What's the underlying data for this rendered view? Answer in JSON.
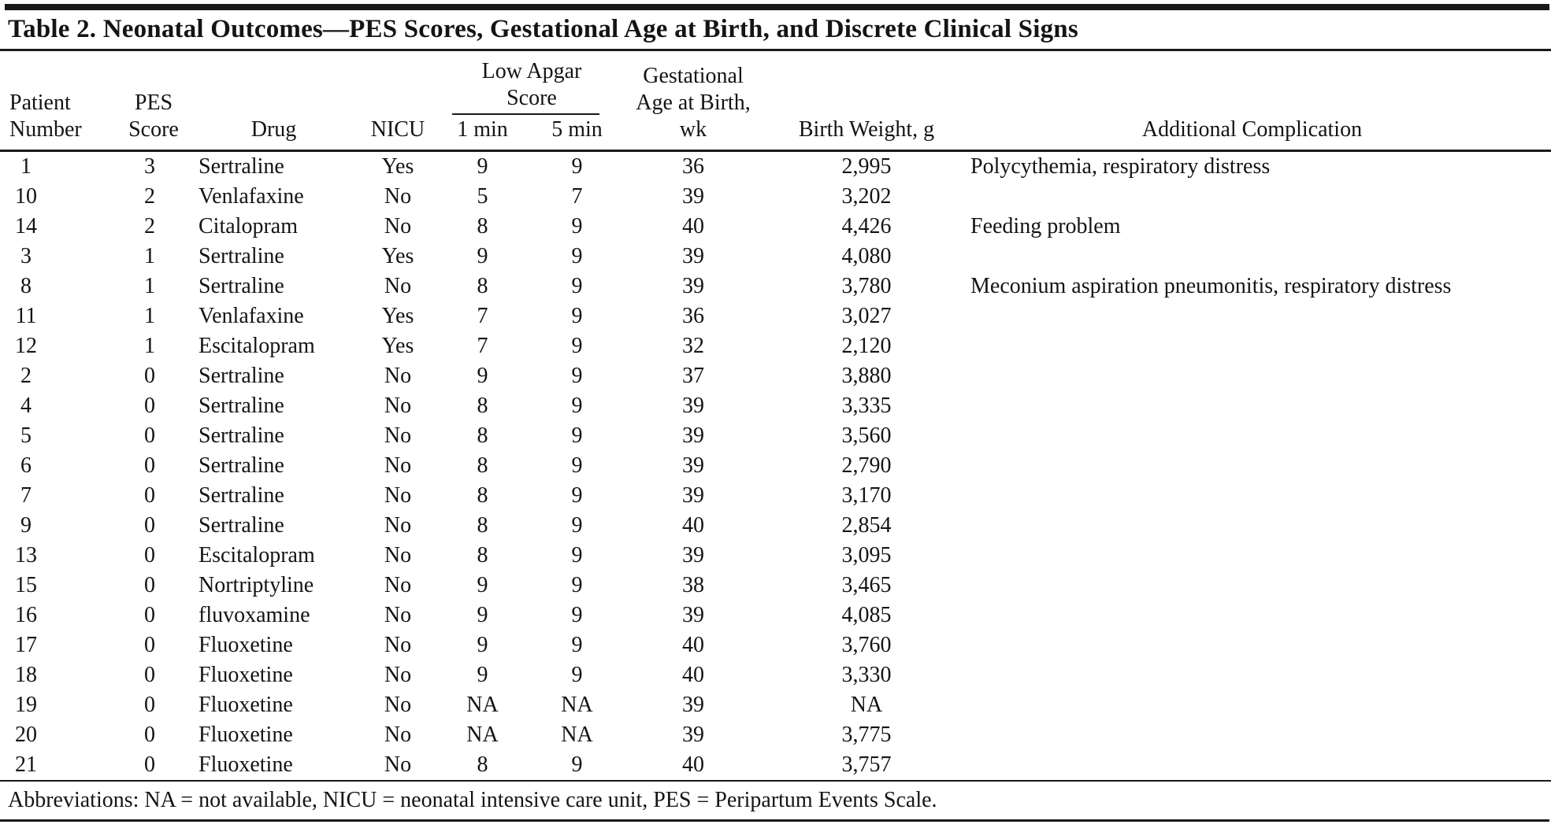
{
  "title": "Table 2. Neonatal Outcomes—PES Scores, Gestational Age at Birth, and Discrete Clinical Signs",
  "columns": {
    "patient": {
      "line1": "Patient",
      "line2": "Number"
    },
    "pes": {
      "line1": "PES",
      "line2": "Score"
    },
    "drug": "Drug",
    "nicu": "NICU",
    "apgar": {
      "line1": "Low Apgar",
      "line2": "Score",
      "sub_1min": "1 min",
      "sub_5min": "5 min"
    },
    "gestational": {
      "line1": "Gestational",
      "line2": "Age at Birth,",
      "line3": "wk"
    },
    "birth_weight": "Birth Weight, g",
    "additional": "Additional Complication"
  },
  "rows": [
    {
      "patient": "1",
      "pes": "3",
      "drug": "Sertraline",
      "nicu": "Yes",
      "apgar1": "9",
      "apgar5": "9",
      "ga": "36",
      "weight": "2,995",
      "complication": "Polycythemia, respiratory distress"
    },
    {
      "patient": "10",
      "pes": "2",
      "drug": "Venlafaxine",
      "nicu": "No",
      "apgar1": "5",
      "apgar5": "7",
      "ga": "39",
      "weight": "3,202",
      "complication": ""
    },
    {
      "patient": "14",
      "pes": "2",
      "drug": "Citalopram",
      "nicu": "No",
      "apgar1": "8",
      "apgar5": "9",
      "ga": "40",
      "weight": "4,426",
      "complication": "Feeding problem"
    },
    {
      "patient": "3",
      "pes": "1",
      "drug": "Sertraline",
      "nicu": "Yes",
      "apgar1": "9",
      "apgar5": "9",
      "ga": "39",
      "weight": "4,080",
      "complication": ""
    },
    {
      "patient": "8",
      "pes": "1",
      "drug": "Sertraline",
      "nicu": "No",
      "apgar1": "8",
      "apgar5": "9",
      "ga": "39",
      "weight": "3,780",
      "complication": "Meconium aspiration pneumonitis, respiratory distress"
    },
    {
      "patient": "11",
      "pes": "1",
      "drug": "Venlafaxine",
      "nicu": "Yes",
      "apgar1": "7",
      "apgar5": "9",
      "ga": "36",
      "weight": "3,027",
      "complication": ""
    },
    {
      "patient": "12",
      "pes": "1",
      "drug": "Escitalopram",
      "nicu": "Yes",
      "apgar1": "7",
      "apgar5": "9",
      "ga": "32",
      "weight": "2,120",
      "complication": ""
    },
    {
      "patient": "2",
      "pes": "0",
      "drug": "Sertraline",
      "nicu": "No",
      "apgar1": "9",
      "apgar5": "9",
      "ga": "37",
      "weight": "3,880",
      "complication": ""
    },
    {
      "patient": "4",
      "pes": "0",
      "drug": "Sertraline",
      "nicu": "No",
      "apgar1": "8",
      "apgar5": "9",
      "ga": "39",
      "weight": "3,335",
      "complication": ""
    },
    {
      "patient": "5",
      "pes": "0",
      "drug": "Sertraline",
      "nicu": "No",
      "apgar1": "8",
      "apgar5": "9",
      "ga": "39",
      "weight": "3,560",
      "complication": ""
    },
    {
      "patient": "6",
      "pes": "0",
      "drug": "Sertraline",
      "nicu": "No",
      "apgar1": "8",
      "apgar5": "9",
      "ga": "39",
      "weight": "2,790",
      "complication": ""
    },
    {
      "patient": "7",
      "pes": "0",
      "drug": "Sertraline",
      "nicu": "No",
      "apgar1": "8",
      "apgar5": "9",
      "ga": "39",
      "weight": "3,170",
      "complication": ""
    },
    {
      "patient": "9",
      "pes": "0",
      "drug": "Sertraline",
      "nicu": "No",
      "apgar1": "8",
      "apgar5": "9",
      "ga": "40",
      "weight": "2,854",
      "complication": ""
    },
    {
      "patient": "13",
      "pes": "0",
      "drug": "Escitalopram",
      "nicu": "No",
      "apgar1": "8",
      "apgar5": "9",
      "ga": "39",
      "weight": "3,095",
      "complication": ""
    },
    {
      "patient": "15",
      "pes": "0",
      "drug": "Nortriptyline",
      "nicu": "No",
      "apgar1": "9",
      "apgar5": "9",
      "ga": "38",
      "weight": "3,465",
      "complication": ""
    },
    {
      "patient": "16",
      "pes": "0",
      "drug": "fluvoxamine",
      "nicu": "No",
      "apgar1": "9",
      "apgar5": "9",
      "ga": "39",
      "weight": "4,085",
      "complication": ""
    },
    {
      "patient": "17",
      "pes": "0",
      "drug": "Fluoxetine",
      "nicu": "No",
      "apgar1": "9",
      "apgar5": "9",
      "ga": "40",
      "weight": "3,760",
      "complication": ""
    },
    {
      "patient": "18",
      "pes": "0",
      "drug": "Fluoxetine",
      "nicu": "No",
      "apgar1": "9",
      "apgar5": "9",
      "ga": "40",
      "weight": "3,330",
      "complication": ""
    },
    {
      "patient": "19",
      "pes": "0",
      "drug": "Fluoxetine",
      "nicu": "No",
      "apgar1": "NA",
      "apgar5": "NA",
      "ga": "39",
      "weight": "NA",
      "complication": ""
    },
    {
      "patient": "20",
      "pes": "0",
      "drug": "Fluoxetine",
      "nicu": "No",
      "apgar1": "NA",
      "apgar5": "NA",
      "ga": "39",
      "weight": "3,775",
      "complication": ""
    },
    {
      "patient": "21",
      "pes": "0",
      "drug": "Fluoxetine",
      "nicu": "No",
      "apgar1": "8",
      "apgar5": "9",
      "ga": "40",
      "weight": "3,757",
      "complication": ""
    }
  ],
  "footnote": "Abbreviations: NA = not available, NICU = neonatal intensive care unit, PES = Peripartum Events Scale."
}
